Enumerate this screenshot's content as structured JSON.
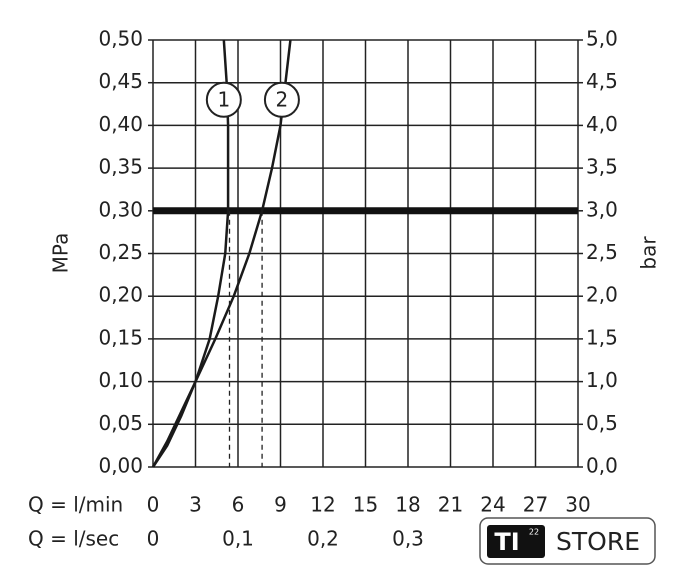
{
  "chart_data": {
    "type": "line",
    "y_label": "MPa",
    "y2_label": "bar",
    "x_label": "Q = l/min",
    "x2_label": "Q = l/sec",
    "xlim": [
      0,
      30
    ],
    "xticks": [
      0,
      3,
      6,
      9,
      12,
      15,
      18,
      21,
      24,
      27,
      30
    ],
    "x2lim": [
      0,
      0.5
    ],
    "x2ticks": [
      0,
      {
        "value": 0.1,
        "label": "0,1"
      },
      {
        "value": 0.2,
        "label": "0,2"
      },
      {
        "value": 0.3,
        "label": "0,3"
      }
    ],
    "ylim": [
      0,
      0.5
    ],
    "yticks": [
      {
        "value": 0,
        "label": "0,00"
      },
      {
        "value": 0.05,
        "label": "0,05"
      },
      {
        "value": 0.1,
        "label": "0,10"
      },
      {
        "value": 0.15,
        "label": "0,15"
      },
      {
        "value": 0.2,
        "label": "0,20"
      },
      {
        "value": 0.25,
        "label": "0,25"
      },
      {
        "value": 0.3,
        "label": "0,30"
      },
      {
        "value": 0.35,
        "label": "0,35"
      },
      {
        "value": 0.4,
        "label": "0,40"
      },
      {
        "value": 0.45,
        "label": "0,45"
      },
      {
        "value": 0.5,
        "label": "0,50"
      }
    ],
    "y2lim": [
      0,
      5
    ],
    "y2ticks": [
      {
        "value": 0,
        "label": "0,0"
      },
      {
        "value": 0.5,
        "label": "0,5"
      },
      {
        "value": 1,
        "label": "1,0"
      },
      {
        "value": 1.5,
        "label": "1,5"
      },
      {
        "value": 2,
        "label": "2,0"
      },
      {
        "value": 2.5,
        "label": "2,5"
      },
      {
        "value": 3,
        "label": "3,0"
      },
      {
        "value": 3.5,
        "label": "3,5"
      },
      {
        "value": 4,
        "label": "4,0"
      },
      {
        "value": 4.5,
        "label": "4,5"
      },
      {
        "value": 5,
        "label": "5,0"
      }
    ],
    "grid": true,
    "reference_y": 0.3,
    "series": [
      {
        "name": "1",
        "color": "#1a1a1a",
        "x": [
          0,
          1,
          2,
          3,
          4,
          4.6,
          5.1,
          5.3,
          5.3,
          5.2,
          5.0
        ],
        "values": [
          0,
          0.025,
          0.06,
          0.1,
          0.15,
          0.2,
          0.25,
          0.3,
          0.4,
          0.45,
          0.5
        ],
        "label_x": 5.0,
        "label_y": 0.43,
        "dashed_x": 5.4
      },
      {
        "name": "2",
        "color": "#1a1a1a",
        "x": [
          0,
          1,
          2,
          3,
          4.4,
          5.7,
          6.8,
          7.7,
          8.4,
          9.0,
          9.7
        ],
        "values": [
          0,
          0.03,
          0.065,
          0.1,
          0.15,
          0.2,
          0.25,
          0.3,
          0.35,
          0.4,
          0.5
        ],
        "label_x": 9.1,
        "label_y": 0.43,
        "dashed_x": 7.7
      }
    ],
    "watermark": {
      "brand": "TI",
      "superscript": "22",
      "text": "STORE"
    }
  }
}
